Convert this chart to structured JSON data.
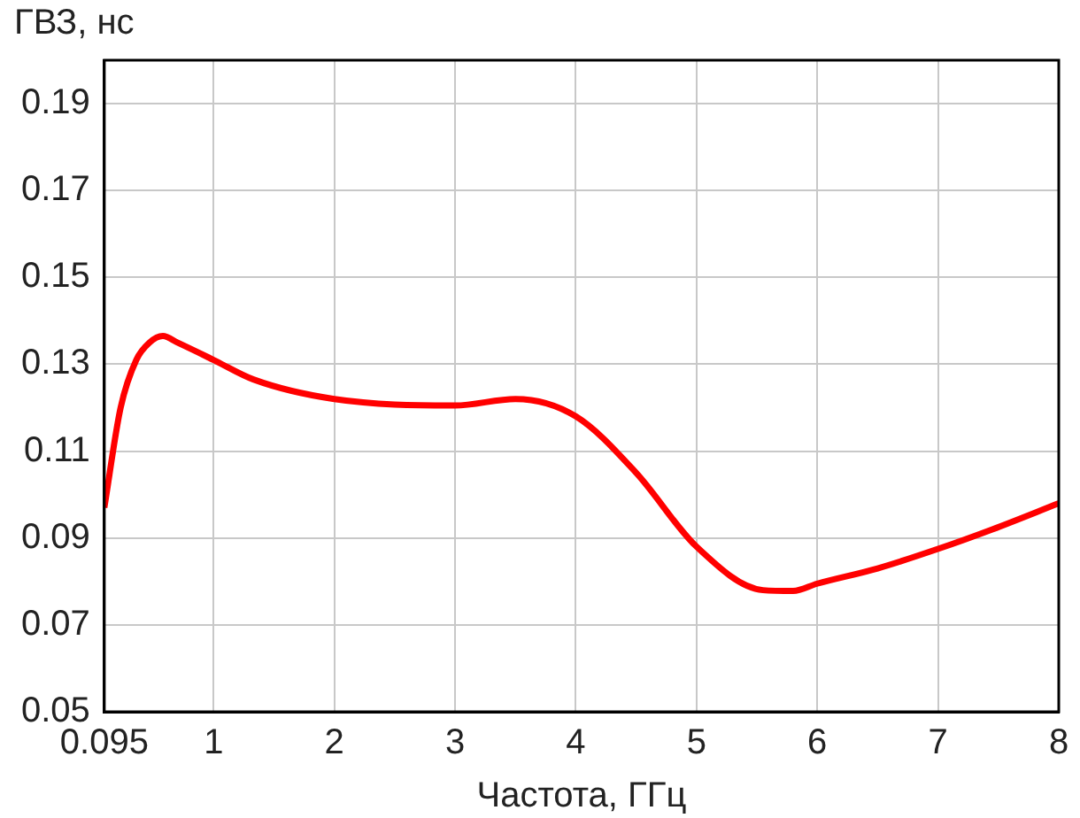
{
  "chart_data": {
    "type": "line",
    "xlabel": "Частота, ГГц",
    "ylabel": "ГВЗ, нс",
    "x": [
      0.095,
      0.23,
      0.36,
      0.47,
      0.58,
      0.7,
      1,
      1.33,
      2,
      3,
      3.5,
      4,
      4.5,
      5,
      5.55,
      5.8,
      6,
      6.5,
      7,
      7.45,
      8
    ],
    "series": [
      {
        "color": "#ff0000",
        "values": [
          0.097,
          0.12,
          0.131,
          0.135,
          0.1365,
          0.135,
          0.131,
          0.1265,
          0.122,
          0.1205,
          0.122,
          0.118,
          0.105,
          0.088,
          0.078,
          0.0778,
          0.0795,
          0.083,
          0.0875,
          0.092,
          0.098
        ]
      }
    ],
    "xlim": [
      0.095,
      8
    ],
    "xticks": [
      0.095,
      1,
      2,
      3,
      4,
      5,
      6,
      7,
      8
    ],
    "ylim": [
      0.05,
      0.2
    ],
    "yticks": [
      0.05,
      0.07,
      0.09,
      0.11,
      0.13,
      0.15,
      0.17,
      0.19
    ],
    "grid": true,
    "legend": false,
    "marker": "none",
    "line_style": "solid"
  }
}
